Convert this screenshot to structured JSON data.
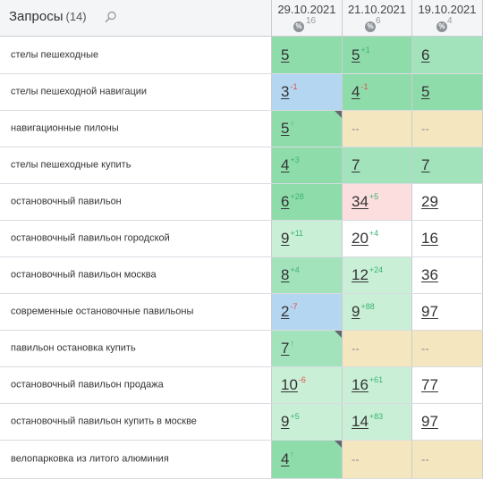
{
  "header": {
    "title": "Запросы",
    "count": "(14)",
    "columns": [
      {
        "date": "29.10.2021",
        "pct_icon": "%",
        "pct_value": "16"
      },
      {
        "date": "21.10.2021",
        "pct_icon": "%",
        "pct_value": "6"
      },
      {
        "date": "19.10.2021",
        "pct_icon": "%",
        "pct_value": "4"
      }
    ]
  },
  "colors": {
    "top_green": "#8fdcab",
    "mid_green": "#a3e3bc",
    "light_green": "#c9efd6",
    "blue": "#b4d6f0",
    "yellow": "#f4e7c0",
    "red": "#fcdede",
    "change_up": "#3cb371",
    "change_down": "#e2504d"
  },
  "rows": [
    {
      "query": "стелы пешеходные",
      "cells": [
        {
          "pos": "5",
          "chg": "",
          "color": "top_green"
        },
        {
          "pos": "5",
          "chg": "+1",
          "color": "top_green"
        },
        {
          "pos": "6",
          "chg": "",
          "color": "mid_green"
        }
      ]
    },
    {
      "query": "стелы пешеходной навигации",
      "cells": [
        {
          "pos": "3",
          "chg": "-1",
          "color": "blue"
        },
        {
          "pos": "4",
          "chg": "-1",
          "color": "top_green"
        },
        {
          "pos": "5",
          "chg": "",
          "color": "top_green"
        }
      ]
    },
    {
      "query": "навигационные пилоны",
      "cells": [
        {
          "pos": "5",
          "chg": "↑",
          "color": "top_green",
          "corner": true
        },
        {
          "pos": "--",
          "chg": "",
          "color": "yellow"
        },
        {
          "pos": "--",
          "chg": "",
          "color": "yellow"
        }
      ]
    },
    {
      "query": "стелы пешеходные купить",
      "cells": [
        {
          "pos": "4",
          "chg": "+3",
          "color": "top_green"
        },
        {
          "pos": "7",
          "chg": "",
          "color": "mid_green"
        },
        {
          "pos": "7",
          "chg": "",
          "color": "mid_green"
        }
      ]
    },
    {
      "query": "остановочный павильон",
      "cells": [
        {
          "pos": "6",
          "chg": "+28",
          "color": "top_green"
        },
        {
          "pos": "34",
          "chg": "+5",
          "color": "red"
        },
        {
          "pos": "29",
          "chg": "",
          "color": "white"
        }
      ]
    },
    {
      "query": "остановочный павильон городской",
      "cells": [
        {
          "pos": "9",
          "chg": "+11",
          "color": "light_green"
        },
        {
          "pos": "20",
          "chg": "+4",
          "color": "white"
        },
        {
          "pos": "16",
          "chg": "",
          "color": "white"
        }
      ]
    },
    {
      "query": "остановочный павильон москва",
      "cells": [
        {
          "pos": "8",
          "chg": "+4",
          "color": "mid_green"
        },
        {
          "pos": "12",
          "chg": "+24",
          "color": "light_green"
        },
        {
          "pos": "36",
          "chg": "",
          "color": "white"
        }
      ]
    },
    {
      "query": "современные остановочные павильоны",
      "cells": [
        {
          "pos": "2",
          "chg": "-7",
          "color": "blue"
        },
        {
          "pos": "9",
          "chg": "+88",
          "color": "light_green"
        },
        {
          "pos": "97",
          "chg": "",
          "color": "white"
        }
      ]
    },
    {
      "query": "павильон остановка купить",
      "cells": [
        {
          "pos": "7",
          "chg": "↑",
          "color": "mid_green",
          "corner": true
        },
        {
          "pos": "--",
          "chg": "",
          "color": "yellow"
        },
        {
          "pos": "--",
          "chg": "",
          "color": "yellow"
        }
      ]
    },
    {
      "query": "остановочный павильон продажа",
      "cells": [
        {
          "pos": "10",
          "chg": "-6",
          "color": "light_green"
        },
        {
          "pos": "16",
          "chg": "+61",
          "color": "light_green"
        },
        {
          "pos": "77",
          "chg": "",
          "color": "white"
        }
      ]
    },
    {
      "query": "остановочный павильон купить в москве",
      "cells": [
        {
          "pos": "9",
          "chg": "+5",
          "color": "light_green"
        },
        {
          "pos": "14",
          "chg": "+83",
          "color": "light_green"
        },
        {
          "pos": "97",
          "chg": "",
          "color": "white"
        }
      ]
    },
    {
      "query": "велопарковка из литого алюминия",
      "cells": [
        {
          "pos": "4",
          "chg": "↑",
          "color": "top_green",
          "corner": true
        },
        {
          "pos": "--",
          "chg": "",
          "color": "yellow"
        },
        {
          "pos": "--",
          "chg": "",
          "color": "yellow"
        }
      ]
    }
  ]
}
